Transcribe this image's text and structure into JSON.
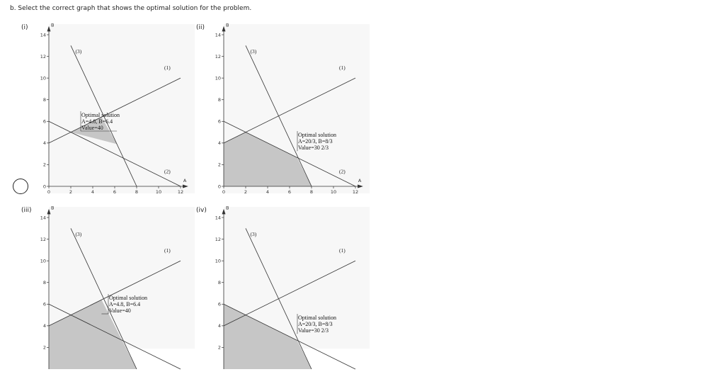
{
  "question": "b. Select the correct graph that shows the optimal solution for the problem.",
  "colors": {
    "feasible_fill": "#c6c6c6",
    "line": "#333333",
    "panel_bg": "#f7f7f7"
  },
  "chart_data": [
    {
      "type": "line",
      "option_label": "(i)",
      "xlabel": "A",
      "ylabel": "B",
      "xlim": [
        0,
        12
      ],
      "ylim": [
        0,
        14
      ],
      "x_ticks": [
        0,
        2,
        4,
        6,
        8,
        10,
        12
      ],
      "y_ticks": [
        0,
        2,
        4,
        6,
        8,
        10,
        12,
        14
      ],
      "constraint_labels": [
        "(1)",
        "(2)",
        "(3)"
      ],
      "lines": [
        {
          "name": "(1)",
          "points": [
            [
              0,
              4
            ],
            [
              12,
              10
            ]
          ]
        },
        {
          "name": "(2)",
          "points": [
            [
              0,
              6
            ],
            [
              12,
              0
            ]
          ]
        },
        {
          "name": "(3)",
          "points": [
            [
              2,
              13
            ],
            [
              8,
              0
            ]
          ]
        }
      ],
      "feasible_region": [
        [
          2,
          5
        ],
        [
          4.8,
          6.4
        ],
        [
          6.2,
          3.9
        ]
      ],
      "annotation": [
        "Optimal solution",
        "A=4.8, B=6.4",
        "Value=40"
      ],
      "annotation_anchor": [
        6.2,
        3.9
      ]
    },
    {
      "type": "line",
      "option_label": "(ii)",
      "xlabel": "A",
      "ylabel": "B",
      "xlim": [
        0,
        12
      ],
      "ylim": [
        0,
        14
      ],
      "x_ticks": [
        0,
        2,
        4,
        6,
        8,
        10,
        12
      ],
      "y_ticks": [
        0,
        2,
        4,
        6,
        8,
        10,
        12,
        14
      ],
      "constraint_labels": [
        "(1)",
        "(2)",
        "(3)"
      ],
      "lines": [
        {
          "name": "(1)",
          "points": [
            [
              0,
              4
            ],
            [
              12,
              10
            ]
          ]
        },
        {
          "name": "(2)",
          "points": [
            [
              0,
              6
            ],
            [
              12,
              0
            ]
          ]
        },
        {
          "name": "(3)",
          "points": [
            [
              2,
              13
            ],
            [
              8,
              0
            ]
          ]
        }
      ],
      "feasible_region": [
        [
          0,
          0
        ],
        [
          0,
          4
        ],
        [
          2,
          5
        ],
        [
          6.67,
          2.67
        ],
        [
          8,
          0
        ]
      ],
      "annotation": [
        "Optimal solution",
        "A=20/3, B=8/3",
        "Value=30 2/3"
      ],
      "annotation_anchor": [
        6.67,
        2.67
      ]
    },
    {
      "type": "line",
      "option_label": "(iii)",
      "xlabel": "A",
      "ylabel": "B",
      "xlim": [
        0,
        12
      ],
      "ylim": [
        0,
        14
      ],
      "x_ticks": [],
      "y_ticks": [
        2,
        4,
        6,
        8,
        10,
        12,
        14
      ],
      "constraint_labels": [
        "(1)",
        "",
        "(3)"
      ],
      "lines": [
        {
          "name": "(1)",
          "points": [
            [
              0,
              4
            ],
            [
              12,
              10
            ]
          ]
        },
        {
          "name": "(2)",
          "points": [
            [
              0,
              6
            ],
            [
              12,
              0
            ]
          ]
        },
        {
          "name": "(3)",
          "points": [
            [
              2,
              13
            ],
            [
              8,
              0
            ]
          ]
        }
      ],
      "feasible_region": [
        [
          0,
          0
        ],
        [
          0,
          4
        ],
        [
          4.8,
          6.4
        ],
        [
          8,
          0
        ]
      ],
      "annotation": [
        "Optimal solution",
        "A=4.8, B=6.4",
        "Value=40"
      ],
      "annotation_anchor": [
        4.8,
        6.4
      ]
    },
    {
      "type": "line",
      "option_label": "(iv)",
      "xlabel": "A",
      "ylabel": "B",
      "xlim": [
        0,
        12
      ],
      "ylim": [
        0,
        14
      ],
      "x_ticks": [],
      "y_ticks": [
        2,
        4,
        6,
        8,
        10,
        12,
        14
      ],
      "constraint_labels": [
        "(1)",
        "",
        "(3)"
      ],
      "lines": [
        {
          "name": "(1)",
          "points": [
            [
              0,
              4
            ],
            [
              12,
              10
            ]
          ]
        },
        {
          "name": "(2)",
          "points": [
            [
              0,
              6
            ],
            [
              12,
              0
            ]
          ]
        },
        {
          "name": "(3)",
          "points": [
            [
              2,
              13
            ],
            [
              8,
              0
            ]
          ]
        }
      ],
      "feasible_region": [
        [
          0,
          0
        ],
        [
          0,
          6
        ],
        [
          6.67,
          2.67
        ],
        [
          8,
          0
        ]
      ],
      "annotation": [
        "Optimal solution",
        "A=20/3, B=8/3",
        "Value=30 2/3"
      ],
      "annotation_anchor": [
        6.67,
        2.67
      ]
    }
  ]
}
